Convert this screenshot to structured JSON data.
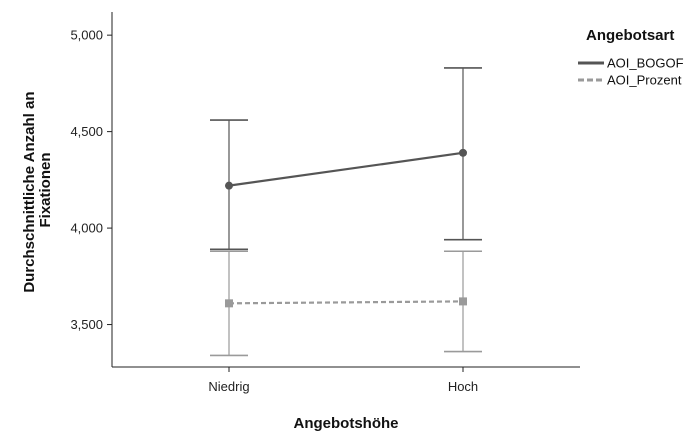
{
  "chart_data": {
    "type": "line",
    "title": "",
    "xlabel": "Angebotshöhe",
    "ylabel_lines": [
      "Durchschnittliche Anzahl an",
      "Fixationen"
    ],
    "categories": [
      "Niedrig",
      "Hoch"
    ],
    "ylim": [
      3.28,
      5.12
    ],
    "yticks": [
      3.5,
      4.0,
      4.5,
      5.0
    ],
    "ytick_labels": [
      "3,500",
      "4,000",
      "4,500",
      "5,000"
    ],
    "grid": false,
    "legend": {
      "title": "Angebotsart",
      "position": "right"
    },
    "series": [
      {
        "name": "AOI_BOGOF",
        "color": "#555555",
        "line_style": "solid",
        "marker": "circle",
        "values": [
          4.22,
          4.39
        ],
        "ci_low": [
          3.89,
          3.94
        ],
        "ci_high": [
          4.56,
          4.83
        ]
      },
      {
        "name": "AOI_Prozent",
        "color": "#9a9a9a",
        "line_style": "dashed",
        "marker": "square",
        "values": [
          3.61,
          3.62
        ],
        "ci_low": [
          3.34,
          3.36
        ],
        "ci_high": [
          3.88,
          3.88
        ]
      }
    ]
  }
}
